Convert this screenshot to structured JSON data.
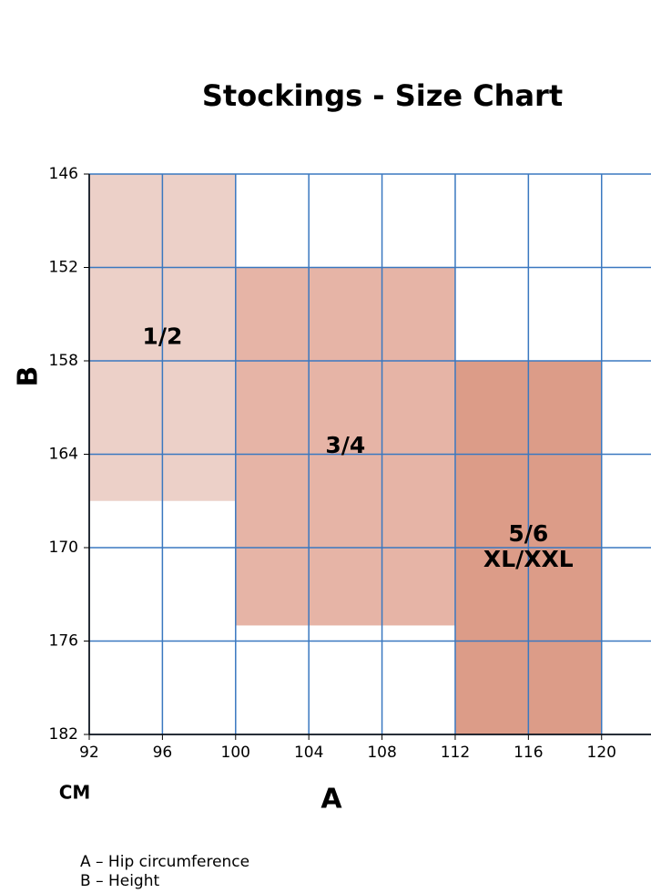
{
  "chart_data": {
    "type": "region",
    "title": "Stockings - Size Chart",
    "x_label": "A",
    "y_label": "B",
    "unit_label": "CM",
    "xlim": [
      92,
      122.7
    ],
    "ylim": [
      146,
      182
    ],
    "xticks": [
      92,
      96,
      100,
      104,
      108,
      112,
      116,
      120
    ],
    "yticks": [
      146,
      152,
      158,
      164,
      170,
      176,
      182
    ],
    "y_inverted": true,
    "grid": true,
    "grid_color": "#3a78c0",
    "regions": [
      {
        "label": [
          "1/2"
        ],
        "x": [
          92,
          100
        ],
        "y": [
          146,
          167
        ],
        "color": "#ecd0c8"
      },
      {
        "label": [
          "3/4"
        ],
        "x": [
          100,
          112
        ],
        "y": [
          152,
          175
        ],
        "color": "#e6b4a6"
      },
      {
        "label": [
          "5/6",
          "XL/XXL"
        ],
        "x": [
          112,
          120
        ],
        "y": [
          158,
          182
        ],
        "color": "#dc9c88"
      }
    ],
    "notes": [
      "A – Hip circumference",
      "B – Height"
    ]
  }
}
